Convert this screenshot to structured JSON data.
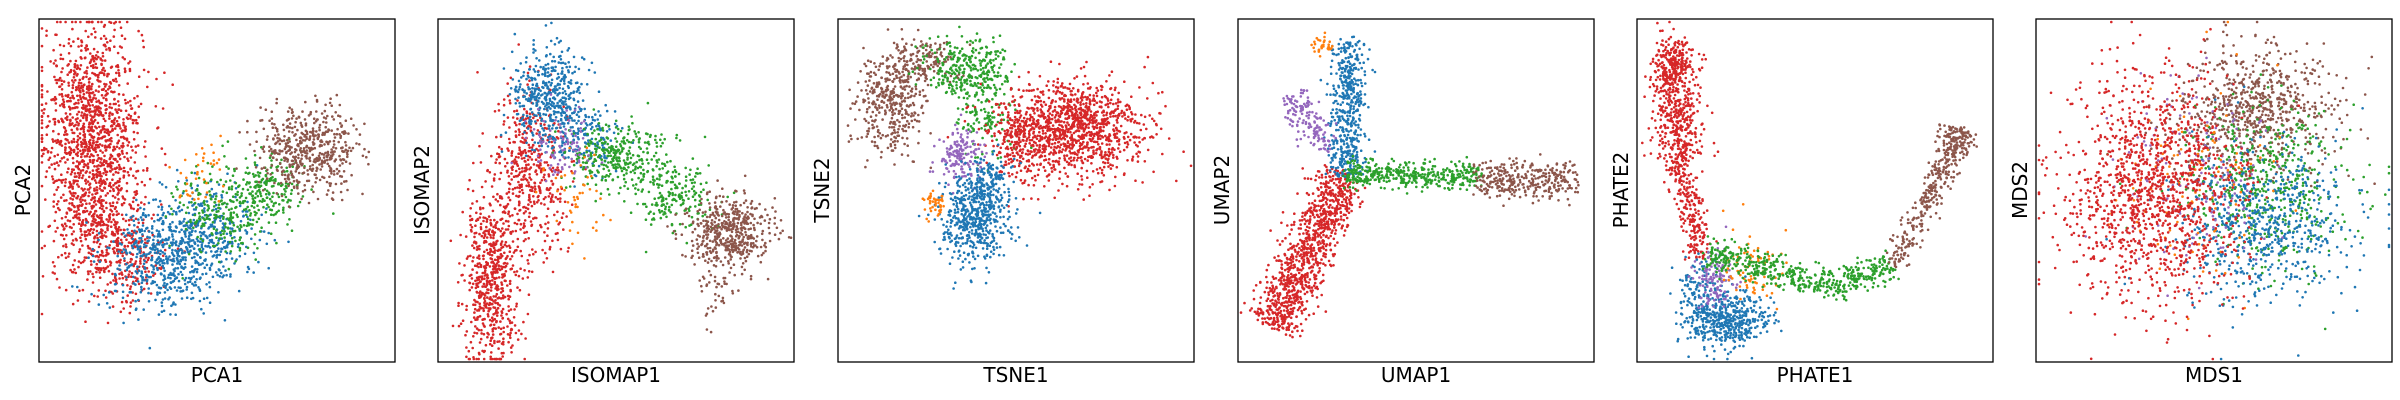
{
  "colors": {
    "red": "#d62728",
    "blue": "#1f77b4",
    "green": "#2ca02c",
    "brown": "#8c564b",
    "orange": "#ff7f0e",
    "purple": "#9467bd"
  },
  "chart_data": [
    {
      "type": "scatter",
      "title": "",
      "xlabel": "PCA1",
      "ylabel": "PCA2",
      "xlim": [
        0,
        100
      ],
      "ylim": [
        0,
        100
      ],
      "grid": false,
      "ticks": false,
      "series": [
        {
          "color": "red",
          "regions": [
            {
              "cx": 15,
              "cy": 70,
              "sx": 7,
              "sy": 14,
              "n": 1100
            },
            {
              "cx": 16,
              "cy": 42,
              "sx": 6,
              "sy": 10,
              "n": 450
            },
            {
              "cx": 25,
              "cy": 30,
              "sx": 6,
              "sy": 7,
              "n": 220
            }
          ]
        },
        {
          "color": "blue",
          "regions": [
            {
              "cx": 35,
              "cy": 30,
              "sx": 8,
              "sy": 8,
              "n": 520
            },
            {
              "cx": 48,
              "cy": 38,
              "sx": 7,
              "sy": 7,
              "n": 300
            }
          ]
        },
        {
          "color": "green",
          "regions": [
            {
              "cx": 52,
              "cy": 45,
              "sx": 7,
              "sy": 7,
              "n": 260
            },
            {
              "cx": 64,
              "cy": 50,
              "sx": 5,
              "sy": 5,
              "n": 160
            }
          ]
        },
        {
          "color": "orange",
          "regions": [
            {
              "cx": 45,
              "cy": 55,
              "sx": 3,
              "sy": 5,
              "n": 40
            }
          ]
        },
        {
          "color": "brown",
          "regions": [
            {
              "cx": 76,
              "cy": 62,
              "sx": 7,
              "sy": 6,
              "n": 520
            }
          ]
        }
      ]
    },
    {
      "type": "scatter",
      "title": "",
      "xlabel": "ISOMAP1",
      "ylabel": "ISOMAP2",
      "xlim": [
        0,
        100
      ],
      "ylim": [
        0,
        100
      ],
      "grid": false,
      "ticks": false,
      "series": [
        {
          "color": "red",
          "regions": [
            {
              "cx": 15,
              "cy": 25,
              "sx": 4,
              "sy": 12,
              "n": 620
            },
            {
              "cx": 26,
              "cy": 55,
              "sx": 5,
              "sy": 12,
              "n": 460
            }
          ]
        },
        {
          "color": "blue",
          "regions": [
            {
              "cx": 31,
              "cy": 78,
              "sx": 5,
              "sy": 7,
              "n": 420
            },
            {
              "cx": 40,
              "cy": 66,
              "sx": 5,
              "sy": 5,
              "n": 180
            }
          ]
        },
        {
          "color": "green",
          "regions": [
            {
              "cx": 50,
              "cy": 60,
              "sx": 7,
              "sy": 5,
              "n": 320
            },
            {
              "cx": 66,
              "cy": 48,
              "sx": 6,
              "sy": 5,
              "n": 200
            }
          ]
        },
        {
          "color": "purple",
          "regions": [
            {
              "cx": 34,
              "cy": 62,
              "sx": 5,
              "sy": 5,
              "n": 90
            }
          ]
        },
        {
          "color": "orange",
          "regions": [
            {
              "cx": 38,
              "cy": 48,
              "sx": 4,
              "sy": 7,
              "n": 45
            }
          ]
        },
        {
          "color": "brown",
          "regions": [
            {
              "cx": 82,
              "cy": 38,
              "sx": 6,
              "sy": 5,
              "n": 460
            },
            {
              "cx": 77,
              "cy": 24,
              "sx": 3,
              "sy": 6,
              "n": 60
            }
          ]
        }
      ]
    },
    {
      "type": "scatter",
      "title": "",
      "xlabel": "TSNE1",
      "ylabel": "TSNE2",
      "xlim": [
        0,
        100
      ],
      "ylim": [
        0,
        100
      ],
      "grid": false,
      "ticks": false,
      "series": [
        {
          "color": "brown",
          "regions": [
            {
              "cx": 15,
              "cy": 76,
              "sx": 5,
              "sy": 7,
              "n": 380
            },
            {
              "cx": 24,
              "cy": 88,
              "sx": 5,
              "sy": 3,
              "n": 150
            }
          ]
        },
        {
          "color": "green",
          "regions": [
            {
              "cx": 36,
              "cy": 86,
              "sx": 6,
              "sy": 4,
              "n": 280
            },
            {
              "cx": 41,
              "cy": 73,
              "sx": 4,
              "sy": 6,
              "n": 150
            }
          ]
        },
        {
          "color": "red",
          "regions": [
            {
              "cx": 66,
              "cy": 68,
              "sx": 10,
              "sy": 7,
              "n": 1100
            },
            {
              "cx": 51,
              "cy": 64,
              "sx": 4,
              "sy": 6,
              "n": 220
            }
          ]
        },
        {
          "color": "purple",
          "regions": [
            {
              "cx": 34,
              "cy": 60,
              "sx": 3,
              "sy": 4,
              "n": 160
            }
          ]
        },
        {
          "color": "blue",
          "regions": [
            {
              "cx": 38,
              "cy": 42,
              "sx": 5,
              "sy": 7,
              "n": 520
            },
            {
              "cx": 42,
              "cy": 53,
              "sx": 3,
              "sy": 4,
              "n": 120
            }
          ]
        },
        {
          "color": "orange",
          "regions": [
            {
              "cx": 27,
              "cy": 46,
              "sx": 1.5,
              "sy": 2,
              "n": 45
            }
          ]
        }
      ]
    },
    {
      "type": "scatter",
      "title": "",
      "xlabel": "UMAP1",
      "ylabel": "UMAP2",
      "xlim": [
        0,
        100
      ],
      "ylim": [
        0,
        100
      ],
      "grid": false,
      "ticks": false,
      "series": [
        {
          "color": "red",
          "segments": [
            {
              "x1": 10,
              "y1": 10,
              "x2": 30,
              "y2": 55,
              "w": 3.5,
              "n": 1000
            }
          ]
        },
        {
          "color": "blue",
          "segments": [
            {
              "x1": 31,
              "y1": 94,
              "x2": 31,
              "y2": 62,
              "w": 2.5,
              "n": 380
            },
            {
              "x1": 31,
              "y1": 62,
              "x2": 30,
              "y2": 54,
              "w": 2.5,
              "n": 120
            }
          ]
        },
        {
          "color": "purple",
          "segments": [
            {
              "x1": 15,
              "y1": 78,
              "x2": 25,
              "y2": 62,
              "w": 2,
              "n": 150
            }
          ]
        },
        {
          "color": "orange",
          "segments": [
            {
              "x1": 21,
              "y1": 93,
              "x2": 27,
              "y2": 91,
              "w": 1.2,
              "n": 30
            }
          ]
        },
        {
          "color": "green",
          "segments": [
            {
              "x1": 30,
              "y1": 55,
              "x2": 68,
              "y2": 54,
              "w": 2,
              "n": 420
            }
          ]
        },
        {
          "color": "brown",
          "segments": [
            {
              "x1": 66,
              "y1": 53,
              "x2": 95,
              "y2": 53,
              "w": 2.5,
              "n": 320
            }
          ]
        }
      ]
    },
    {
      "type": "scatter",
      "title": "",
      "xlabel": "PHATE1",
      "ylabel": "PHATE2",
      "xlim": [
        0,
        100
      ],
      "ylim": [
        0,
        100
      ],
      "grid": false,
      "ticks": false,
      "series": [
        {
          "color": "red",
          "segments": [
            {
              "x1": 10,
              "y1": 88,
              "x2": 12,
              "y2": 60,
              "w": 3.5,
              "n": 450
            },
            {
              "x1": 12,
              "y1": 60,
              "x2": 18,
              "y2": 30,
              "w": 2,
              "n": 250
            }
          ],
          "regions": [
            {
              "cx": 10,
              "cy": 88,
              "sx": 3,
              "sy": 4,
              "n": 160
            }
          ]
        },
        {
          "color": "blue",
          "regions": [
            {
              "cx": 25,
              "cy": 12,
              "sx": 6,
              "sy": 4,
              "n": 450
            },
            {
              "cx": 18,
              "cy": 22,
              "sx": 3,
              "sy": 5,
              "n": 120
            }
          ]
        },
        {
          "color": "purple",
          "regions": [
            {
              "cx": 22,
              "cy": 24,
              "sx": 3,
              "sy": 4,
              "n": 120
            }
          ]
        },
        {
          "color": "orange",
          "regions": [
            {
              "cx": 32,
              "cy": 28,
              "sx": 4,
              "sy": 6,
              "n": 80
            }
          ]
        },
        {
          "color": "green",
          "segments": [
            {
              "x1": 20,
              "y1": 32,
              "x2": 55,
              "y2": 22,
              "w": 2.2,
              "n": 350
            },
            {
              "x1": 55,
              "y1": 22,
              "x2": 72,
              "y2": 28,
              "w": 2,
              "n": 180
            }
          ]
        },
        {
          "color": "brown",
          "segments": [
            {
              "x1": 72,
              "y1": 28,
              "x2": 88,
              "y2": 60,
              "w": 1.8,
              "n": 250
            },
            {
              "x1": 88,
              "y1": 60,
              "x2": 91,
              "y2": 68,
              "w": 2.5,
              "n": 150
            }
          ]
        }
      ]
    },
    {
      "type": "scatter",
      "title": "",
      "xlabel": "MDS1",
      "ylabel": "MDS2",
      "xlim": [
        0,
        100
      ],
      "ylim": [
        0,
        100
      ],
      "grid": false,
      "ticks": false,
      "series": [
        {
          "color": "brown",
          "regions": [
            {
              "cx": 62,
              "cy": 74,
              "sx": 11,
              "sy": 9,
              "n": 700
            }
          ]
        },
        {
          "color": "green",
          "regions": [
            {
              "cx": 64,
              "cy": 52,
              "sx": 12,
              "sy": 12,
              "n": 520
            }
          ]
        },
        {
          "color": "blue",
          "regions": [
            {
              "cx": 64,
              "cy": 40,
              "sx": 12,
              "sy": 11,
              "n": 650
            }
          ]
        },
        {
          "color": "purple",
          "regions": [
            {
              "cx": 46,
              "cy": 56,
              "sx": 10,
              "sy": 14,
              "n": 150
            }
          ]
        },
        {
          "color": "orange",
          "regions": [
            {
              "cx": 45,
              "cy": 54,
              "sx": 10,
              "sy": 14,
              "n": 110
            }
          ]
        },
        {
          "color": "red",
          "regions": [
            {
              "cx": 33,
              "cy": 50,
              "sx": 12,
              "sy": 16,
              "n": 1300
            }
          ]
        }
      ]
    }
  ]
}
